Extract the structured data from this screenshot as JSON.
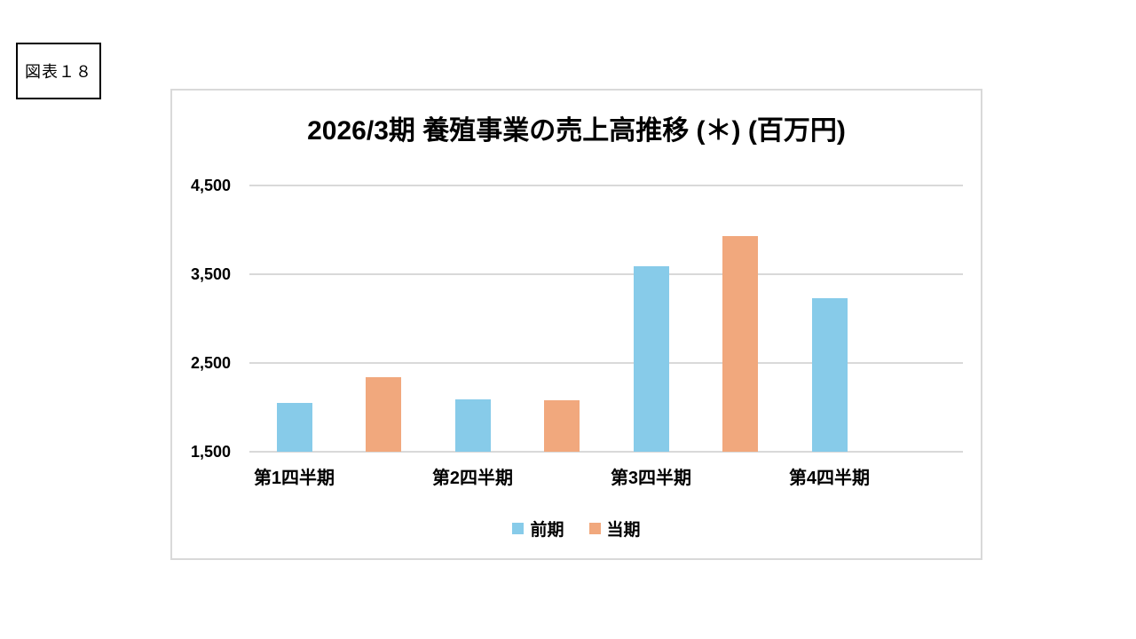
{
  "figure_label": {
    "text": "図表１８"
  },
  "chart_data": {
    "type": "bar",
    "title": "2026/3期 養殖事業の売上高推移 (＊) (百万円)",
    "unit": "百万円",
    "categories": [
      "第1四半期",
      "第2四半期",
      "第3四半期",
      "第4四半期"
    ],
    "category_keys": [
      "q1",
      "q2",
      "q3",
      "q4"
    ],
    "series": [
      {
        "name": "前期",
        "key": "previous-period",
        "color": "#87CBE9",
        "values": [
          2050,
          2090,
          3590,
          3230
        ]
      },
      {
        "name": "当期",
        "key": "current-period",
        "color": "#F1A87D",
        "values": [
          2340,
          2080,
          3930,
          null
        ]
      }
    ],
    "ylim": [
      1500,
      4500
    ],
    "yticks": [
      {
        "label": "4,500",
        "value": 4500
      },
      {
        "label": "3,500",
        "value": 3500
      },
      {
        "label": "2,500",
        "value": 2500
      },
      {
        "label": "1,500",
        "value": 1500
      }
    ],
    "grid": true,
    "legend_position": "bottom",
    "gridline_color": "#d9d9d9",
    "text_color": "#000000"
  }
}
